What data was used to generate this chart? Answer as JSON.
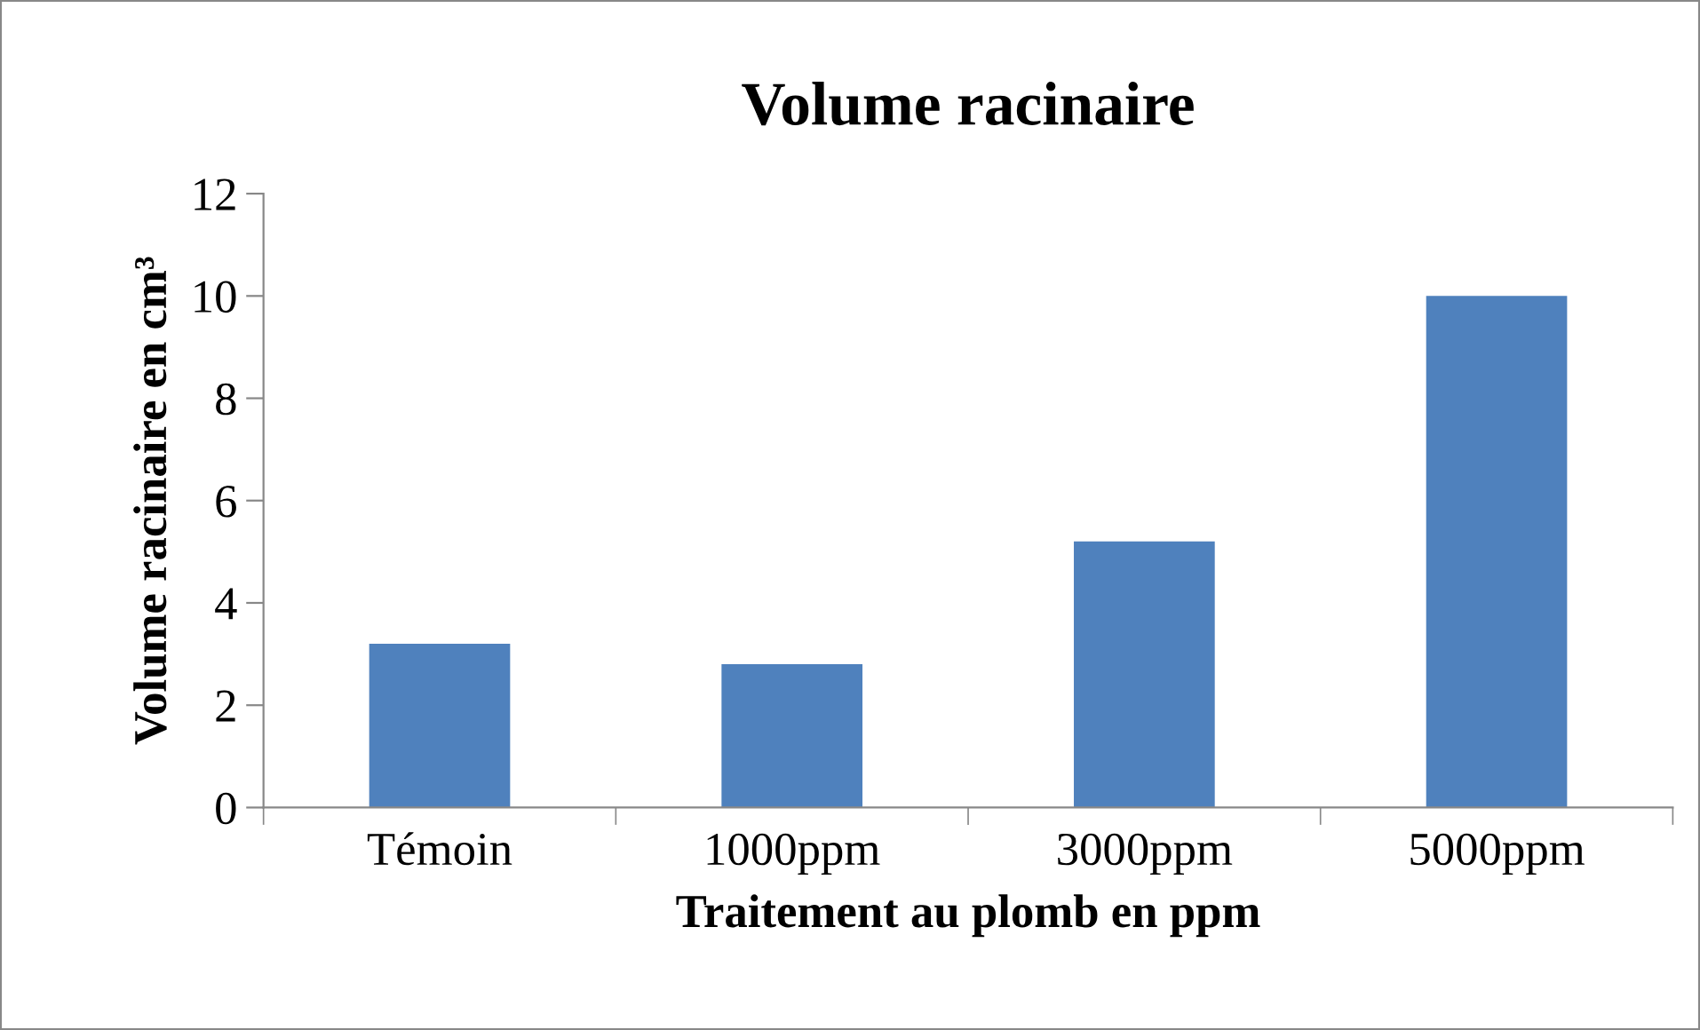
{
  "chart_data": {
    "type": "bar",
    "title": "Volume racinaire",
    "xlabel": "Traitement au plomb en ppm",
    "ylabel": "Volume racinaire en cm³",
    "categories": [
      "Témoin",
      "1000ppm",
      "3000ppm",
      "5000ppm"
    ],
    "values": [
      3.2,
      2.8,
      5.2,
      10
    ],
    "color": "#4f81bd",
    "ylim": [
      0,
      12
    ],
    "yticks": [
      0,
      2,
      4,
      6,
      8,
      10,
      12
    ],
    "grid": false,
    "legend": false
  }
}
